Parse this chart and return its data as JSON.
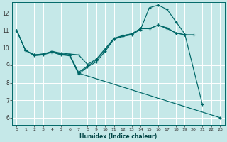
{
  "xlabel": "Humidex (Indice chaleur)",
  "ylabel": "",
  "bg_color": "#c5e8e8",
  "grid_color": "#d4eeee",
  "line_color": "#006868",
  "xlim": [
    -0.5,
    23.5
  ],
  "ylim": [
    5.6,
    12.6
  ],
  "yticks": [
    6,
    7,
    8,
    9,
    10,
    11,
    12
  ],
  "xticks": [
    0,
    1,
    2,
    3,
    4,
    5,
    6,
    7,
    8,
    9,
    10,
    11,
    12,
    13,
    14,
    15,
    16,
    17,
    18,
    19,
    20,
    21,
    22,
    23
  ],
  "lines": [
    {
      "x": [
        0,
        1,
        2,
        3,
        4,
        5,
        6,
        7,
        8,
        9,
        10,
        11,
        12,
        13,
        14,
        15,
        16,
        17,
        18,
        19,
        20,
        21,
        22,
        23
      ],
      "y": [
        11.0,
        9.85,
        9.6,
        9.65,
        9.75,
        9.65,
        9.55,
        8.55,
        null,
        null,
        null,
        null,
        null,
        null,
        null,
        null,
        null,
        null,
        null,
        null,
        null,
        null,
        null,
        6.0
      ]
    },
    {
      "x": [
        0,
        1,
        2,
        3,
        4,
        5,
        6,
        7,
        8,
        9,
        10,
        11,
        12,
        13,
        14,
        15,
        16,
        17,
        18,
        19,
        20,
        21
      ],
      "y": [
        11.0,
        9.85,
        9.55,
        9.6,
        9.75,
        9.6,
        9.55,
        8.5,
        8.9,
        9.2,
        9.8,
        10.5,
        10.65,
        10.75,
        11.05,
        12.3,
        12.45,
        12.2,
        11.5,
        10.8,
        null,
        6.75
      ]
    },
    {
      "x": [
        4,
        5,
        6,
        7,
        8,
        9,
        10,
        11,
        12,
        13,
        14,
        15,
        16,
        17,
        18,
        19
      ],
      "y": [
        9.8,
        9.65,
        9.6,
        8.6,
        8.95,
        9.3,
        9.9,
        10.5,
        10.7,
        10.8,
        11.1,
        11.1,
        11.3,
        11.1,
        10.85,
        10.75
      ]
    },
    {
      "x": [
        0,
        1,
        2,
        3,
        4,
        5,
        6,
        7,
        8,
        9,
        10,
        11,
        12,
        13,
        14,
        15,
        16,
        17,
        18,
        19,
        20
      ],
      "y": [
        11.0,
        9.85,
        9.6,
        9.65,
        9.8,
        9.7,
        9.65,
        9.6,
        9.05,
        9.35,
        9.95,
        10.55,
        10.7,
        10.8,
        11.1,
        11.1,
        11.3,
        11.15,
        10.85,
        10.75,
        10.75
      ]
    }
  ]
}
